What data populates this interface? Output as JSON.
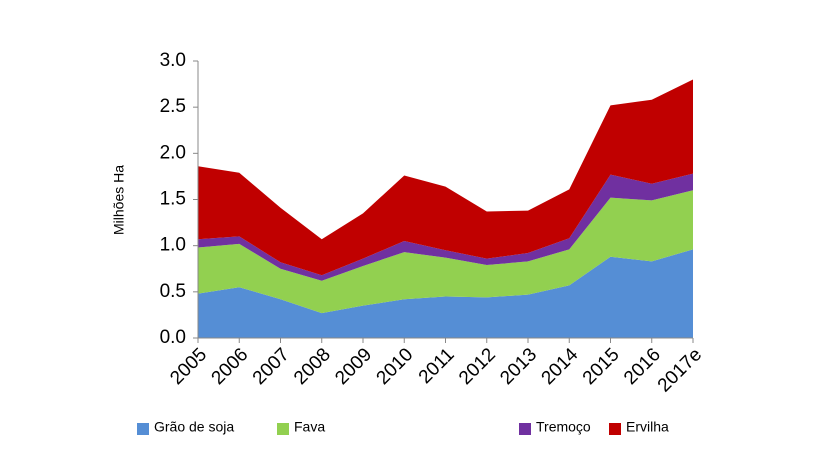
{
  "chart_data": {
    "type": "stacked_area",
    "y_label": "Milhões Ha",
    "categories": [
      "2005",
      "2006",
      "2007",
      "2008",
      "2009",
      "2010",
      "2011",
      "2012",
      "2013",
      "2014",
      "2015",
      "2016",
      "2017e"
    ],
    "series": [
      {
        "name": "Grão de soja",
        "color": "#558ed5",
        "values": [
          0.48,
          0.55,
          0.42,
          0.27,
          0.35,
          0.42,
          0.45,
          0.44,
          0.47,
          0.57,
          0.88,
          0.83,
          0.96
        ]
      },
      {
        "name": "Fava",
        "color": "#92d050",
        "values": [
          0.5,
          0.47,
          0.33,
          0.35,
          0.43,
          0.51,
          0.42,
          0.35,
          0.36,
          0.39,
          0.64,
          0.66,
          0.64
        ]
      },
      {
        "name": "Tremoço",
        "color": "#7030a0",
        "values": [
          0.09,
          0.08,
          0.07,
          0.06,
          0.08,
          0.12,
          0.08,
          0.07,
          0.09,
          0.12,
          0.25,
          0.18,
          0.18
        ]
      },
      {
        "name": "Ervilha",
        "color": "#c00000",
        "values": [
          0.79,
          0.69,
          0.59,
          0.39,
          0.49,
          0.71,
          0.69,
          0.51,
          0.46,
          0.53,
          0.75,
          0.91,
          1.02
        ]
      }
    ],
    "ylim": [
      0,
      3
    ],
    "yticks": [
      {
        "value": 0,
        "label": "0.0"
      },
      0.5,
      {
        "value": 1,
        "label": "1.0"
      },
      1.5,
      {
        "value": 2,
        "label": "2.0"
      },
      2.5,
      {
        "value": 3,
        "label": "3.0"
      }
    ]
  }
}
